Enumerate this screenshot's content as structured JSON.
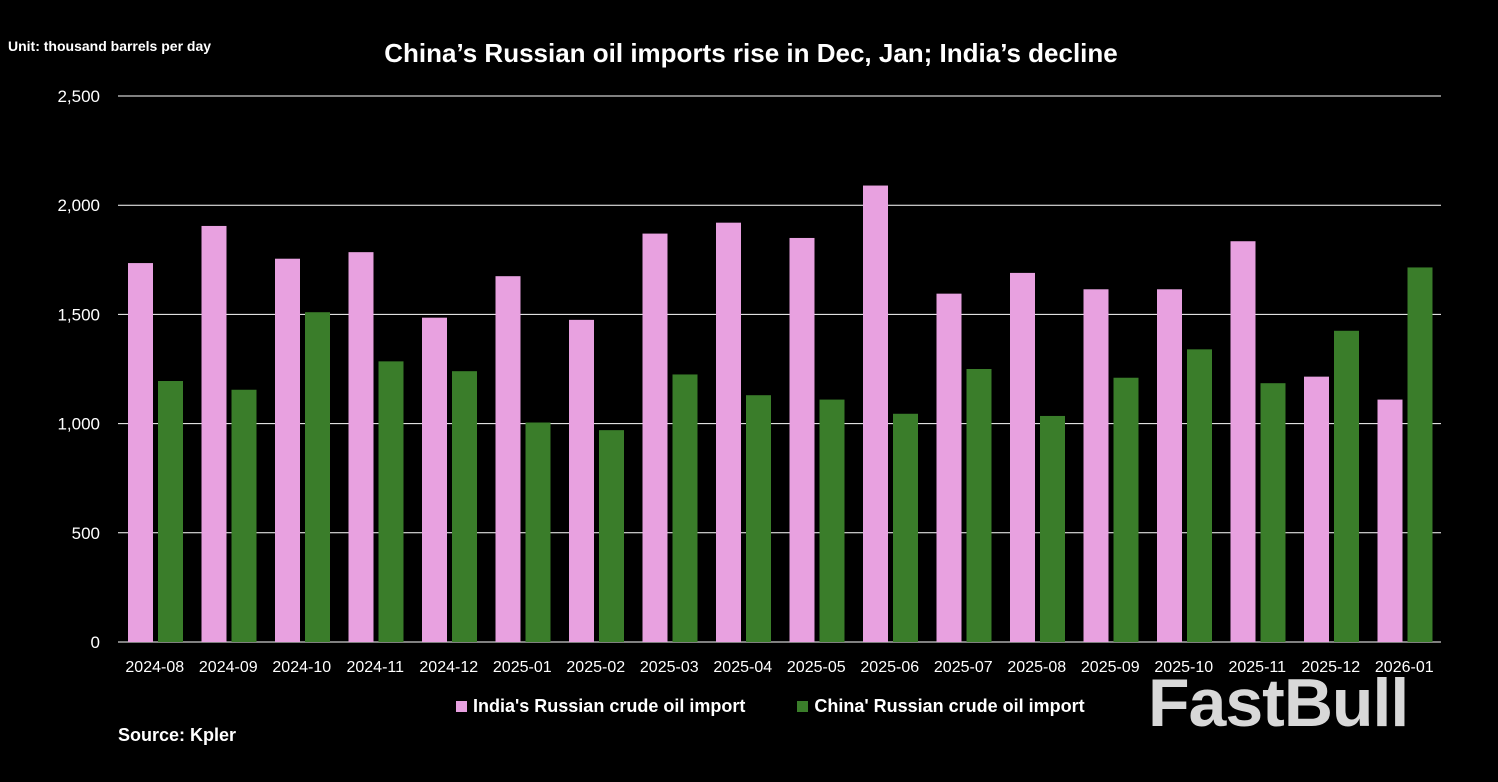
{
  "unit_label": "Unit: thousand barrels per day",
  "source_label": "Source: Kpler",
  "watermark": "FastBull",
  "colors": {
    "india": "#e8a1e0",
    "china": "#3a7d2a",
    "grid": "#ffffff",
    "background": "#000000"
  },
  "chart_data": {
    "type": "bar",
    "title": "China’s Russian oil imports rise in Dec, Jan; India’s decline",
    "xlabel": "",
    "ylabel": "",
    "ylim": [
      0,
      2500
    ],
    "yticks": [
      0,
      500,
      1000,
      1500,
      2000,
      2500
    ],
    "ytick_labels": [
      "0",
      "500",
      "1,000",
      "1,500",
      "2,000",
      "2,500"
    ],
    "grid": true,
    "legend_position": "bottom",
    "categories": [
      "2024-08",
      "2024-09",
      "2024-10",
      "2024-11",
      "2024-12",
      "2025-01",
      "2025-02",
      "2025-03",
      "2025-04",
      "2025-05",
      "2025-06",
      "2025-07",
      "2025-08",
      "2025-09",
      "2025-10",
      "2025-11",
      "2025-12",
      "2026-01"
    ],
    "series": [
      {
        "name": "India's Russian crude oil import",
        "color": "#e8a1e0",
        "values": [
          1735,
          1905,
          1755,
          1785,
          1485,
          1675,
          1475,
          1870,
          1920,
          1850,
          2090,
          1595,
          1690,
          1615,
          1615,
          1835,
          1215,
          1110
        ]
      },
      {
        "name": "China' Russian crude oil import",
        "color": "#3a7d2a",
        "values": [
          1195,
          1155,
          1510,
          1285,
          1240,
          1005,
          970,
          1225,
          1130,
          1110,
          1045,
          1250,
          1035,
          1210,
          1340,
          1185,
          1425,
          1715
        ]
      }
    ]
  }
}
